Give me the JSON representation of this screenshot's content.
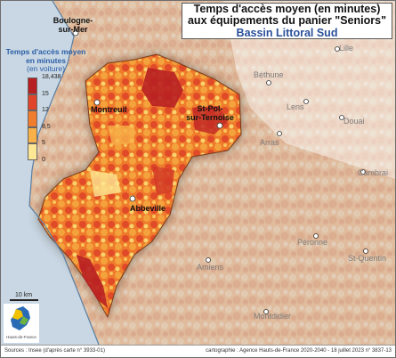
{
  "title": {
    "line1": "Temps d'accès moyen (en minutes)",
    "line2": "aux équipements du panier \"Seniors\"",
    "subtitle": "Bassin Littoral Sud"
  },
  "legend": {
    "title": "Temps d'accès moyen",
    "subtitle_line1": "en minutes",
    "subtitle_line2": "(en voiture)",
    "classes": [
      {
        "label": "18,438",
        "color": "#b81f22"
      },
      {
        "label": "15",
        "color": "#e0442a"
      },
      {
        "label": "12",
        "color": "#f07d2e"
      },
      {
        "label": "8,5",
        "color": "#f8b049"
      },
      {
        "label": "5",
        "color": "#fde794"
      },
      {
        "label": "0",
        "color": "#ffffff"
      }
    ]
  },
  "places": {
    "study_area": [
      {
        "name": "Montreuil"
      },
      {
        "name": "St-Pol-sur-Ternoise",
        "line1": "St-Pol-",
        "line2": "sur-Ternoise"
      },
      {
        "name": "Abbeville"
      }
    ],
    "outside": [
      {
        "name": "Boulogne-sur-Mer",
        "line1": "Boulogne-",
        "line2": "sur-Mer"
      },
      {
        "name": "Lille"
      },
      {
        "name": "Béthune"
      },
      {
        "name": "Lens"
      },
      {
        "name": "Douai"
      },
      {
        "name": "Arras"
      },
      {
        "name": "Cambrai"
      },
      {
        "name": "Péronne"
      },
      {
        "name": "St-Quentin"
      },
      {
        "name": "Amiens"
      },
      {
        "name": "Montdidier"
      }
    ]
  },
  "scale": {
    "label": "10 km"
  },
  "logo": {
    "text": "Hauts-de-France"
  },
  "footer": {
    "source": "Sources : Insee (d'après carte n° 3933-01)",
    "credit": "cartographie : Agence Hauts-de-France 2020-2040 - 18 juillet 2023 n° 3837-13"
  },
  "colors": {
    "sea": "#c8d7e3",
    "coast": "#5a7fa5"
  }
}
